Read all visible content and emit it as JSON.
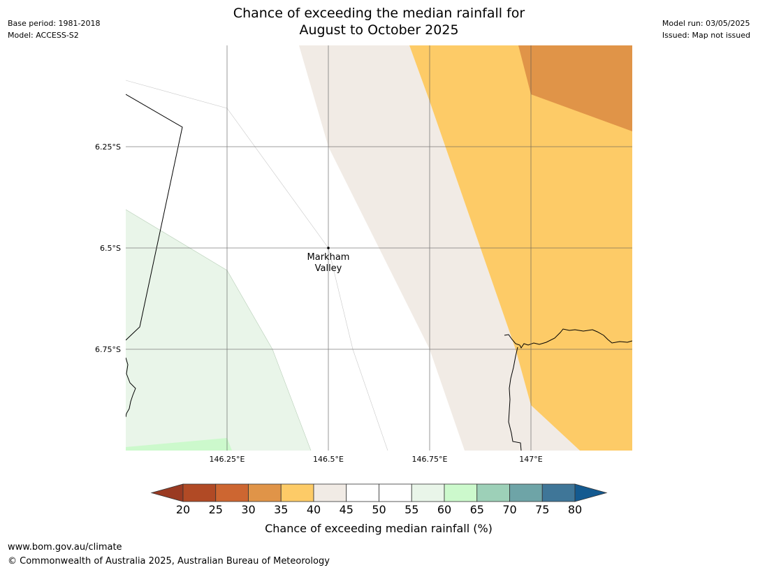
{
  "header": {
    "title_line1": "Chance of exceeding the median rainfall for",
    "title_line2": "August to October 2025",
    "base_period": "Base period: 1981-2018",
    "model": "Model: ACCESS-S2",
    "model_run": "Model run: 03/05/2025",
    "issued": "Issued: Map not issued"
  },
  "map": {
    "lat_ticks": [
      "6.25°S",
      "6.5°S",
      "6.75°S"
    ],
    "lon_ticks": [
      "146.25°E",
      "146.5°E",
      "146.75°E",
      "147°E"
    ],
    "place_label_line1": "Markham",
    "place_label_line2": "Valley"
  },
  "colorbar": {
    "label": "Chance of exceeding median rainfall (%)",
    "ticks": [
      "20",
      "25",
      "30",
      "35",
      "40",
      "45",
      "50",
      "55",
      "60",
      "65",
      "70",
      "75",
      "80"
    ],
    "extend_low_color": "#9a3a22",
    "extend_high_color": "#145a90",
    "bins": [
      {
        "range": "20-25",
        "color": "#b14a25"
      },
      {
        "range": "25-30",
        "color": "#cd6631"
      },
      {
        "range": "30-35",
        "color": "#e09448"
      },
      {
        "range": "35-40",
        "color": "#fdcb67"
      },
      {
        "range": "40-45",
        "color": "#f1ebe5"
      },
      {
        "range": "45-50",
        "color": "#ffffff"
      },
      {
        "range": "50-55",
        "color": "#ffffff"
      },
      {
        "range": "55-60",
        "color": "#e9f5e9"
      },
      {
        "range": "60-65",
        "color": "#ccf9cc"
      },
      {
        "range": "65-70",
        "color": "#9dd0b8"
      },
      {
        "range": "70-75",
        "color": "#6ea4a7"
      },
      {
        "range": "75-80",
        "color": "#3f7698"
      }
    ]
  },
  "footer": {
    "url": "www.bom.gov.au/climate",
    "copyright": "© Commonwealth of Australia 2025, Australian Bureau of Meteorology"
  }
}
